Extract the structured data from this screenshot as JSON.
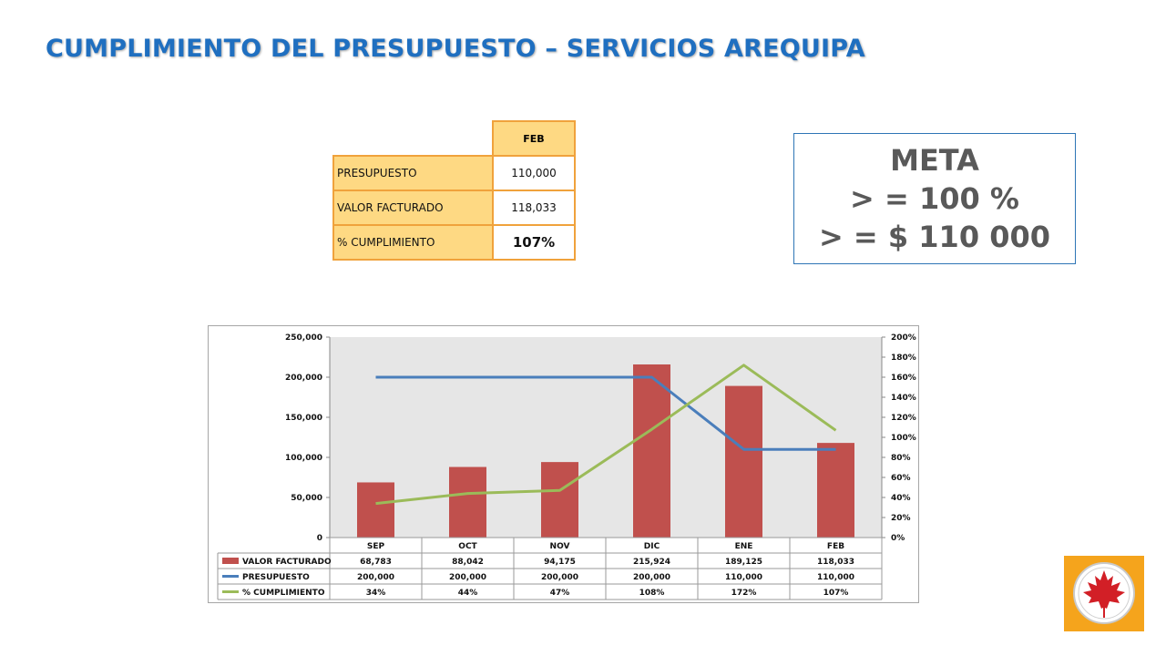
{
  "title": "CUMPLIMIENTO DEL PRESUPUESTO – SERVICIOS AREQUIPA",
  "summary": {
    "header": "FEB",
    "rows": [
      {
        "label": "PRESUPUESTO",
        "value": "110,000"
      },
      {
        "label": "VALOR FACTURADO",
        "value": "118,033"
      },
      {
        "label": "% CUMPLIMIENTO",
        "value": "107%"
      }
    ]
  },
  "meta": {
    "line1": "META",
    "line2": "> = 100 %",
    "line3": "> = $ 110 000"
  },
  "chart_data": {
    "type": "bar",
    "categories": [
      "SEP",
      "OCT",
      "NOV",
      "DIC",
      "ENE",
      "FEB"
    ],
    "ylim": [
      0,
      250000
    ],
    "yticks": [
      "250,000",
      "200,000",
      "150,000",
      "100,000",
      "50,000",
      "0"
    ],
    "y2lim": [
      0,
      2.0
    ],
    "y2ticks": [
      "200%",
      "180%",
      "160%",
      "140%",
      "120%",
      "100%",
      "80%",
      "60%",
      "40%",
      "20%",
      "0%"
    ],
    "grid": false,
    "series": [
      {
        "name": "VALOR FACTURADO",
        "type": "bar",
        "axis": "left",
        "color": "#c0504d",
        "values": [
          68783,
          88042,
          94175,
          215924,
          189125,
          118033
        ],
        "labels": [
          "68,783",
          "88,042",
          "94,175",
          "215,924",
          "189,125",
          "118,033"
        ]
      },
      {
        "name": "PRESUPUESTO",
        "type": "line",
        "axis": "left",
        "color": "#4a7ebb",
        "values": [
          200000,
          200000,
          200000,
          200000,
          110000,
          110000
        ],
        "labels": [
          "200,000",
          "200,000",
          "200,000",
          "200,000",
          "110,000",
          "110,000"
        ]
      },
      {
        "name": "% CUMPLIMIENTO",
        "type": "line",
        "axis": "right",
        "color": "#9bbb59",
        "values": [
          0.34,
          0.44,
          0.47,
          1.08,
          1.72,
          1.07
        ],
        "labels": [
          "34%",
          "44%",
          "47%",
          "108%",
          "172%",
          "107%"
        ]
      }
    ],
    "plot_background": "#e6e6e6",
    "legend": "data-table-below"
  }
}
